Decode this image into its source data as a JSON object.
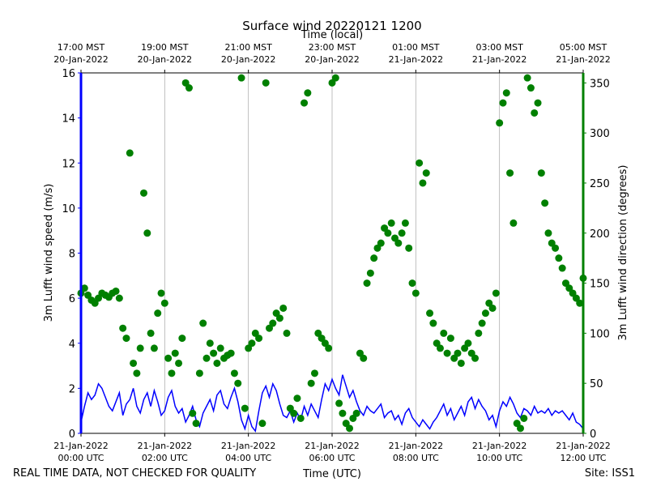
{
  "chart_data": {
    "type": "dual_axis_line_scatter",
    "title": "Surface wind 20220121 1200",
    "xlabel": "Time (UTC)",
    "x2label": "Time (local)",
    "ylabel": "3m Lufft wind speed (m/s)",
    "y2label": "3m Lufft wind direction (degrees)",
    "footer_left": "REAL TIME DATA, NOT CHECKED FOR QUALITY",
    "footer_right": "Site: ISS1",
    "xlim": [
      0,
      720
    ],
    "xticks": [
      {
        "value": 0,
        "label": [
          "21-Jan-2022",
          "00:00 UTC"
        ]
      },
      {
        "value": 120,
        "label": [
          "21-Jan-2022",
          "02:00 UTC"
        ]
      },
      {
        "value": 240,
        "label": [
          "21-Jan-2022",
          "04:00 UTC"
        ]
      },
      {
        "value": 360,
        "label": [
          "21-Jan-2022",
          "06:00 UTC"
        ]
      },
      {
        "value": 480,
        "label": [
          "21-Jan-2022",
          "08:00 UTC"
        ]
      },
      {
        "value": 600,
        "label": [
          "21-Jan-2022",
          "10:00 UTC"
        ]
      },
      {
        "value": 720,
        "label": [
          "21-Jan-2022",
          "12:00 UTC"
        ]
      }
    ],
    "x2ticks": [
      {
        "value": 0,
        "label": [
          "17:00 MST",
          "20-Jan-2022"
        ]
      },
      {
        "value": 120,
        "label": [
          "19:00 MST",
          "20-Jan-2022"
        ]
      },
      {
        "value": 240,
        "label": [
          "21:00 MST",
          "20-Jan-2022"
        ]
      },
      {
        "value": 360,
        "label": [
          "23:00 MST",
          "20-Jan-2022"
        ]
      },
      {
        "value": 480,
        "label": [
          "01:00 MST",
          "21-Jan-2022"
        ]
      },
      {
        "value": 600,
        "label": [
          "03:00 MST",
          "21-Jan-2022"
        ]
      },
      {
        "value": 720,
        "label": [
          "05:00 MST",
          "21-Jan-2022"
        ]
      }
    ],
    "ylim": [
      0,
      16
    ],
    "yticks": [
      0,
      2,
      4,
      6,
      8,
      10,
      12,
      14,
      16
    ],
    "y2lim": [
      0,
      360
    ],
    "y2ticks": [
      0,
      50,
      100,
      150,
      200,
      250,
      300,
      350
    ],
    "grid": "x",
    "x": [
      0,
      5,
      10,
      15,
      20,
      25,
      30,
      35,
      40,
      45,
      50,
      55,
      60,
      65,
      70,
      75,
      80,
      85,
      90,
      95,
      100,
      105,
      110,
      115,
      120,
      125,
      130,
      135,
      140,
      145,
      150,
      155,
      160,
      165,
      170,
      175,
      180,
      185,
      190,
      195,
      200,
      205,
      210,
      215,
      220,
      225,
      230,
      235,
      240,
      245,
      250,
      255,
      260,
      265,
      270,
      275,
      280,
      285,
      290,
      295,
      300,
      305,
      310,
      315,
      320,
      325,
      330,
      335,
      340,
      345,
      350,
      355,
      360,
      365,
      370,
      375,
      380,
      385,
      390,
      395,
      400,
      405,
      410,
      415,
      420,
      425,
      430,
      435,
      440,
      445,
      450,
      455,
      460,
      465,
      470,
      475,
      480,
      485,
      490,
      495,
      500,
      505,
      510,
      515,
      520,
      525,
      530,
      535,
      540,
      545,
      550,
      555,
      560,
      565,
      570,
      575,
      580,
      585,
      590,
      595,
      600,
      605,
      610,
      615,
      620,
      625,
      630,
      635,
      640,
      645,
      650,
      655,
      660,
      665,
      670,
      675,
      680,
      685,
      690,
      695,
      700,
      705,
      710,
      715,
      720
    ],
    "series": [
      {
        "name": "3m Lufft wind speed",
        "style": "line",
        "color": "#0000ff",
        "axis": "y",
        "values": [
          0.5,
          1.2,
          1.8,
          1.5,
          1.7,
          2.2,
          2.0,
          1.6,
          1.2,
          1.0,
          1.4,
          1.8,
          0.8,
          1.3,
          1.5,
          2.0,
          1.2,
          0.9,
          1.5,
          1.8,
          1.2,
          1.9,
          1.4,
          0.8,
          1.0,
          1.6,
          1.9,
          1.2,
          0.9,
          1.1,
          0.5,
          0.8,
          1.2,
          0.6,
          0.3,
          0.9,
          1.2,
          1.5,
          1.0,
          1.7,
          1.9,
          1.3,
          1.1,
          1.6,
          2.0,
          1.4,
          0.6,
          0.2,
          0.8,
          0.3,
          0.1,
          1.0,
          1.8,
          2.1,
          1.6,
          2.2,
          1.9,
          1.3,
          0.8,
          0.7,
          1.0,
          0.5,
          0.9,
          0.6,
          1.2,
          0.8,
          1.3,
          1.0,
          0.7,
          1.5,
          2.2,
          1.9,
          2.4,
          2.0,
          1.7,
          2.6,
          2.1,
          1.6,
          1.9,
          1.4,
          1.0,
          0.8,
          1.2,
          1.0,
          0.9,
          1.1,
          1.3,
          0.7,
          0.9,
          1.0,
          0.6,
          0.8,
          0.4,
          0.9,
          1.1,
          0.7,
          0.5,
          0.3,
          0.6,
          0.4,
          0.2,
          0.5,
          0.7,
          1.0,
          1.3,
          0.8,
          1.1,
          0.6,
          0.9,
          1.2,
          0.8,
          1.4,
          1.6,
          1.1,
          1.5,
          1.2,
          1.0,
          0.6,
          0.8,
          0.3,
          1.0,
          1.4,
          1.2,
          1.6,
          1.3,
          0.9,
          0.7,
          1.1,
          1.0,
          0.8,
          1.2,
          0.9,
          1.0,
          0.9,
          1.1,
          0.8,
          1.0,
          0.9,
          1.0,
          0.8,
          0.6,
          0.9,
          0.5,
          0.4,
          0.2
        ]
      },
      {
        "name": "3m Lufft wind direction",
        "style": "scatter",
        "color": "#008000",
        "axis": "y2",
        "values": [
          140,
          145,
          138,
          133,
          130,
          135,
          140,
          138,
          136,
          140,
          142,
          135,
          105,
          95,
          280,
          70,
          60,
          85,
          240,
          200,
          100,
          85,
          120,
          140,
          130,
          75,
          60,
          80,
          70,
          95,
          350,
          345,
          20,
          10,
          60,
          110,
          75,
          90,
          80,
          70,
          85,
          75,
          78,
          80,
          60,
          50,
          355,
          25,
          85,
          90,
          100,
          95,
          10,
          350,
          105,
          110,
          120,
          115,
          125,
          100,
          25,
          20,
          35,
          15,
          330,
          340,
          50,
          60,
          100,
          95,
          90,
          85,
          350,
          355,
          30,
          20,
          10,
          5,
          15,
          20,
          80,
          75,
          150,
          160,
          175,
          185,
          190,
          205,
          200,
          210,
          195,
          190,
          200,
          210,
          185,
          150,
          140,
          270,
          250,
          260,
          120,
          110,
          90,
          85,
          100,
          80,
          95,
          75,
          80,
          70,
          85,
          90,
          80,
          75,
          100,
          110,
          120,
          130,
          125,
          140,
          310,
          330,
          340,
          260,
          210,
          10,
          5,
          15,
          355,
          345,
          320,
          330,
          260,
          230,
          200,
          190,
          185,
          175,
          165,
          150,
          145,
          140,
          135,
          130,
          155
        ]
      }
    ]
  }
}
